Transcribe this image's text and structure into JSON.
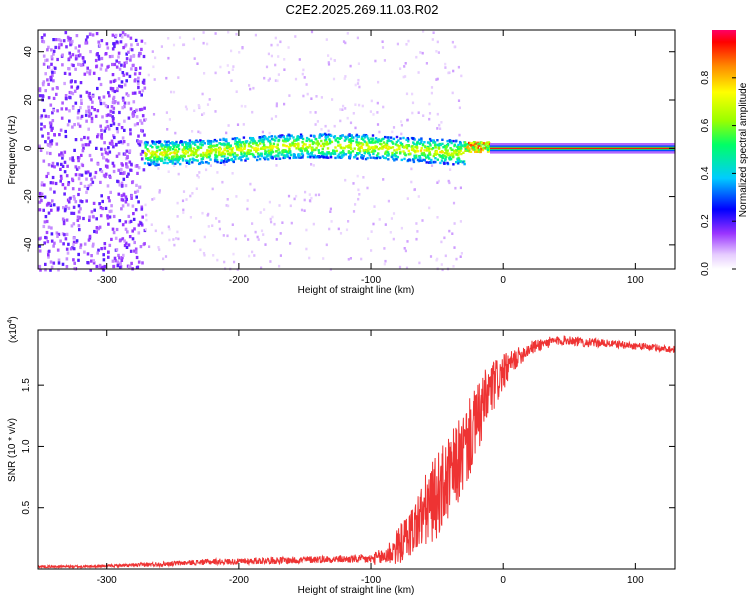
{
  "title": "C2E2.2025.269.11.03.R02",
  "colorbar": {
    "label": "Normalized spectral amplitude",
    "ticks": [
      "0.0",
      "0.2",
      "0.4",
      "0.6",
      "0.8"
    ],
    "tick_values": [
      0,
      0.2,
      0.4,
      0.6,
      0.8
    ]
  },
  "chart_data": [
    {
      "type": "heatmap",
      "title": "",
      "xlabel": "Height of straight line (km)",
      "ylabel": "Frequency (Hz)",
      "xlim": [
        -352,
        130
      ],
      "ylim": [
        -50,
        49
      ],
      "x_ticks": [
        -300,
        -200,
        -100,
        0,
        100
      ],
      "x_tick_labels": [
        "-300",
        "-200",
        "-100",
        "0",
        "100"
      ],
      "y_ticks": [
        -40,
        -20,
        0,
        20,
        40
      ],
      "y_tick_labels": [
        "-40",
        "-20",
        "0",
        "20",
        "40"
      ],
      "zlim": [
        0,
        1
      ],
      "colormap": "rainbow (white to purple, blue, cyan, green, yellow, red)",
      "features": [
        {
          "x": [
            -352,
            -272
          ],
          "y": [
            -50,
            49
          ],
          "amplitude": 0.1,
          "pattern": "broadband noise"
        },
        {
          "x": [
            -272,
            -30
          ],
          "y_center": 0,
          "y_halfwidth": 5,
          "amplitude": 0.55,
          "pattern": "scattered signal band"
        },
        {
          "x": [
            -30,
            -10
          ],
          "y_center": 1,
          "y_halfwidth": 2,
          "amplitude": 0.9,
          "pattern": "transition"
        },
        {
          "x": [
            -10,
            130
          ],
          "y_center": 0,
          "y_halfwidth": 1,
          "amplitude": 1.0,
          "pattern": "steady tone"
        }
      ]
    },
    {
      "type": "line",
      "title": "",
      "xlabel": "Height of straight line (km)",
      "ylabel": "SNR (10 * v/v)",
      "y_scale_label": "(x10",
      "y_scale_exp": "4",
      "xlim": [
        -352,
        130
      ],
      "ylim": [
        0,
        1.95
      ],
      "x_ticks": [
        -300,
        -200,
        -100,
        0,
        100
      ],
      "x_tick_labels": [
        "-300",
        "-200",
        "-100",
        "0",
        "100"
      ],
      "y_ticks": [
        0.5,
        1.0,
        1.5
      ],
      "y_tick_labels": [
        "0.5",
        "1.0",
        "1.5"
      ],
      "series": [
        {
          "color": "#ee3333",
          "x": [
            -352,
            -320,
            -300,
            -280,
            -260,
            -240,
            -220,
            -200,
            -180,
            -160,
            -140,
            -120,
            -100,
            -90,
            -80,
            -70,
            -60,
            -50,
            -40,
            -30,
            -20,
            -10,
            0,
            10,
            20,
            30,
            40,
            50,
            60,
            80,
            100,
            120,
            130
          ],
          "y": [
            0.02,
            0.02,
            0.025,
            0.03,
            0.04,
            0.05,
            0.06,
            0.06,
            0.07,
            0.07,
            0.08,
            0.08,
            0.08,
            0.1,
            0.18,
            0.3,
            0.45,
            0.6,
            0.75,
            0.95,
            1.2,
            1.45,
            1.6,
            1.72,
            1.8,
            1.84,
            1.86,
            1.87,
            1.85,
            1.84,
            1.82,
            1.8,
            1.79
          ],
          "noise_halfwidth": [
            0.01,
            0.01,
            0.01,
            0.015,
            0.02,
            0.02,
            0.025,
            0.025,
            0.03,
            0.03,
            0.03,
            0.03,
            0.04,
            0.08,
            0.15,
            0.2,
            0.3,
            0.35,
            0.35,
            0.35,
            0.3,
            0.25,
            0.15,
            0.08,
            0.06,
            0.05,
            0.04,
            0.04,
            0.04,
            0.03,
            0.03,
            0.03,
            0.03
          ]
        }
      ]
    }
  ]
}
